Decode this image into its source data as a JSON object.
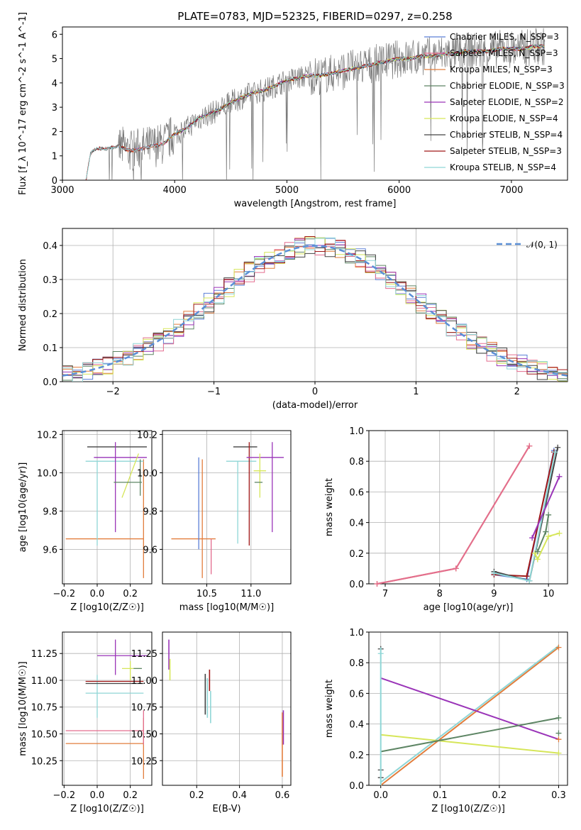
{
  "figure": {
    "title": "PLATE=0783, MJD=52325, FIBERID=0297, z=0.258"
  },
  "colors": {
    "chabrier_miles": "#5B7FD6",
    "salpeter_miles": "#E36D8F",
    "kroupa_miles": "#E27D3C",
    "chabrier_elodie": "#5D8564",
    "salpeter_elodie": "#9A34B8",
    "kroupa_elodie": "#D6E659",
    "chabrier_stelib": "#444444",
    "salpeter_stelib": "#A01818",
    "kroupa_stelib": "#8FD6D6",
    "data_spectrum": "#7A7A7A",
    "normal_curve": "#5B8FD6",
    "grid": "#b0b0b0"
  },
  "chart_data": [
    {
      "id": "spectrum",
      "type": "line",
      "xlabel": "wavelength [Angstrom, rest frame]",
      "ylabel": "Flux [f_λ 10^-17 erg cm^-2 s^-1 A^-1]",
      "xlim": [
        3000,
        7500
      ],
      "ylim": [
        0,
        6.3
      ],
      "xticks": [
        "3000",
        "4000",
        "5000",
        "6000",
        "7000"
      ],
      "yticks": [
        "0",
        "1",
        "2",
        "3",
        "4",
        "5",
        "6"
      ],
      "grid": false,
      "legend": "top-right",
      "legend_entries": [
        "Chabrier MILES, N_SSP=3",
        "Salpeter MILES, N_SSP=3",
        "Kroupa MILES, N_SSP=3",
        "Chabrier ELODIE, N_SSP=3",
        "Salpeter ELODIE, N_SSP=2",
        "Kroupa ELODIE, N_SSP=4",
        "Chabrier STELIB, N_SSP=4",
        "Salpeter STELIB, N_SSP=3",
        "Kroupa STELIB, N_SSP=4"
      ],
      "model_curve": {
        "x": [
          3210,
          3250,
          3300,
          3400,
          3500,
          3600,
          3700,
          3800,
          3900,
          4000,
          4100,
          4200,
          4300,
          4400,
          4500,
          4600,
          4700,
          4800,
          4900,
          5000,
          5100,
          5200,
          5300,
          5400,
          5500,
          5600,
          5700,
          5800,
          5900,
          6000,
          6100,
          6200,
          6300,
          6400,
          6500,
          6600,
          6700,
          6800,
          6900,
          7000,
          7100,
          7200,
          7300
        ],
        "y": [
          0,
          1.1,
          1.3,
          1.3,
          1.4,
          1.2,
          1.3,
          1.4,
          1.5,
          1.9,
          2.1,
          2.5,
          2.7,
          2.9,
          3.2,
          3.4,
          3.6,
          3.7,
          3.9,
          4.1,
          4.2,
          4.3,
          4.3,
          4.4,
          4.5,
          4.6,
          4.7,
          4.8,
          4.9,
          5.0,
          5.0,
          5.1,
          5.1,
          5.2,
          5.2,
          5.3,
          5.3,
          5.3,
          5.4,
          5.4,
          5.4,
          5.5,
          5.5
        ]
      }
    },
    {
      "id": "residuals",
      "type": "line",
      "xlabel": "(data-model)/error",
      "ylabel": "Normed distribution",
      "xlim": [
        -2.5,
        2.5
      ],
      "ylim": [
        0,
        0.45
      ],
      "xticks": [
        "−2",
        "−1",
        "0",
        "1",
        "2"
      ],
      "yticks": [
        "0.0",
        "0.1",
        "0.2",
        "0.3",
        "0.4"
      ],
      "grid": true,
      "legend": "top-right",
      "legend_entries": [
        "𝒩(0, 1)"
      ]
    },
    {
      "id": "age_vs_Z",
      "type": "scatter",
      "xlabel": "Z [log10(Z/Z☉)]",
      "ylabel": "age [log10(age/yr)]",
      "xlim": [
        -0.21,
        0.33
      ],
      "ylim": [
        9.42,
        10.22
      ],
      "xticks": [
        "−0.2",
        "0.0",
        "0.2"
      ],
      "yticks": [
        "9.6",
        "9.8",
        "10.0",
        "10.2"
      ],
      "grid": true,
      "points": [
        {
          "x": -0.19,
          "xerr_lo": 0.0,
          "x2": 0.28,
          "y": 9.655,
          "ylo": 9.655,
          "yhi": 9.655,
          "c": "kroupa_miles"
        },
        {
          "x": 0.28,
          "xerr_lo": 0.28,
          "x2": 0.28,
          "y": 9.655,
          "ylo": 9.45,
          "yhi": 10.07,
          "c": "kroupa_miles"
        },
        {
          "x": 0.0,
          "x2": 0.0,
          "y": 10.06,
          "ylo": 9.62,
          "yhi": 10.06,
          "c": "kroupa_stelib"
        },
        {
          "x": -0.07,
          "x2": 0.28,
          "y": 10.06,
          "ylo": 10.06,
          "yhi": 10.06,
          "c": "kroupa_stelib"
        },
        {
          "x": -0.06,
          "x2": 0.3,
          "y": 10.135,
          "ylo": 10.135,
          "yhi": 10.135,
          "c": "chabrier_stelib"
        },
        {
          "x": -0.02,
          "x2": 0.3,
          "y": 10.08,
          "ylo": 10.08,
          "yhi": 10.08,
          "c": "salpeter_elodie"
        },
        {
          "x": 0.11,
          "x2": 0.11,
          "y": 10.08,
          "ylo": 9.69,
          "yhi": 10.16,
          "c": "salpeter_elodie"
        },
        {
          "x": 0.15,
          "x2": 0.25,
          "y": 10.01,
          "ylo": 9.87,
          "yhi": 10.1,
          "c": "kroupa_elodie"
        },
        {
          "x": 0.1,
          "x2": 0.27,
          "y": 9.95,
          "ylo": 9.95,
          "yhi": 9.95,
          "c": "chabrier_elodie"
        },
        {
          "x": 0.26,
          "x2": 0.26,
          "y": 9.98,
          "ylo": 9.88,
          "yhi": 10.07,
          "c": "chabrier_elodie"
        }
      ]
    },
    {
      "id": "age_vs_mass",
      "type": "scatter",
      "xlabel": "mass [log10(M/M☉)]",
      "ylabel": "",
      "xlim": [
        10.0,
        11.45
      ],
      "ylim": [
        9.42,
        10.22
      ],
      "xticks": [
        "10.5",
        "11.0"
      ],
      "yticks": [
        "9.6",
        "9.8",
        "10.0",
        "10.2"
      ],
      "grid": true
    },
    {
      "id": "weight_vs_age",
      "type": "line",
      "xlabel": "age [log10(age/yr)]",
      "ylabel": "mass weight",
      "xlim": [
        6.7,
        10.35
      ],
      "ylim": [
        0,
        1.0
      ],
      "xticks": [
        "7",
        "8",
        "9",
        "10"
      ],
      "yticks": [
        "0.0",
        "0.2",
        "0.4",
        "0.6",
        "0.8",
        "1.0"
      ],
      "grid": true,
      "series": [
        {
          "c": "kroupa_miles",
          "x": [
            6.85,
            8.3,
            9.65
          ],
          "y": [
            0.0,
            0.1,
            0.9
          ]
        },
        {
          "c": "salpeter_miles",
          "x": [
            6.85,
            8.3,
            9.65
          ],
          "y": [
            0.0,
            0.1,
            0.9
          ]
        },
        {
          "c": "chabrier_miles",
          "x": [
            9.0,
            9.6,
            10.1
          ],
          "y": [
            0.06,
            0.03,
            0.87
          ]
        },
        {
          "c": "salpeter_stelib",
          "x": [
            9.0,
            9.6,
            10.1
          ],
          "y": [
            0.06,
            0.05,
            0.86
          ]
        },
        {
          "c": "chabrier_stelib",
          "x": [
            9.0,
            9.65,
            10.17
          ],
          "y": [
            0.08,
            0.02,
            0.89
          ]
        },
        {
          "c": "kroupa_stelib",
          "x": [
            9.0,
            9.65,
            10.12
          ],
          "y": [
            0.07,
            0.02,
            0.86
          ]
        },
        {
          "c": "salpeter_elodie",
          "x": [
            9.7,
            10.2
          ],
          "y": [
            0.3,
            0.7
          ]
        },
        {
          "c": "kroupa_elodie",
          "x": [
            9.75,
            9.8,
            10.0,
            10.2
          ],
          "y": [
            0.2,
            0.16,
            0.31,
            0.33
          ]
        },
        {
          "c": "chabrier_elodie",
          "x": [
            9.8,
            9.95,
            10.0
          ],
          "y": [
            0.21,
            0.34,
            0.45
          ]
        }
      ]
    },
    {
      "id": "mass_vs_Z",
      "type": "scatter",
      "xlabel": "Z [log10(Z/Z☉)]",
      "ylabel": "mass [log10(M/M☉)]",
      "xlim": [
        -0.21,
        0.33
      ],
      "ylim": [
        10.02,
        11.45
      ],
      "xticks": [
        "−0.2",
        "0.0",
        "0.2"
      ],
      "yticks": [
        "10.25",
        "10.50",
        "10.75",
        "11.00",
        "11.25"
      ],
      "grid": true
    },
    {
      "id": "mass_vs_ebv",
      "type": "scatter",
      "xlabel": "E(B-V)",
      "ylabel": "",
      "xlim": [
        0.04,
        0.64
      ],
      "ylim": [
        10.02,
        11.45
      ],
      "xticks": [
        "0.2",
        "0.4",
        "0.6"
      ],
      "yticks": [
        "10.25",
        "10.50",
        "10.75",
        "11.00",
        "11.25"
      ],
      "grid": true
    },
    {
      "id": "weight_vs_Z",
      "type": "line",
      "xlabel": "Z [log10(Z/Z☉)]",
      "ylabel": "mass weight",
      "xlim": [
        -0.02,
        0.315
      ],
      "ylim": [
        0,
        1.0
      ],
      "xticks": [
        "0.0",
        "0.1",
        "0.2",
        "0.3"
      ],
      "yticks": [
        "0.0",
        "0.2",
        "0.4",
        "0.6",
        "0.8",
        "1.0"
      ],
      "grid": true,
      "series": [
        {
          "c": "kroupa_miles",
          "x": [
            0.0,
            0.3
          ],
          "y": [
            0.0,
            0.9
          ]
        },
        {
          "c": "kroupa_stelib",
          "x": [
            0.0,
            0.3
          ],
          "y": [
            0.02,
            0.91
          ]
        },
        {
          "c": "salpeter_elodie",
          "x": [
            0.0,
            0.3
          ],
          "y": [
            0.7,
            0.3
          ]
        },
        {
          "c": "kroupa_elodie",
          "x": [
            0.0,
            0.3
          ],
          "y": [
            0.33,
            0.21
          ]
        },
        {
          "c": "chabrier_elodie",
          "x": [
            0.0,
            0.3
          ],
          "y": [
            0.22,
            0.44
          ]
        }
      ]
    }
  ]
}
